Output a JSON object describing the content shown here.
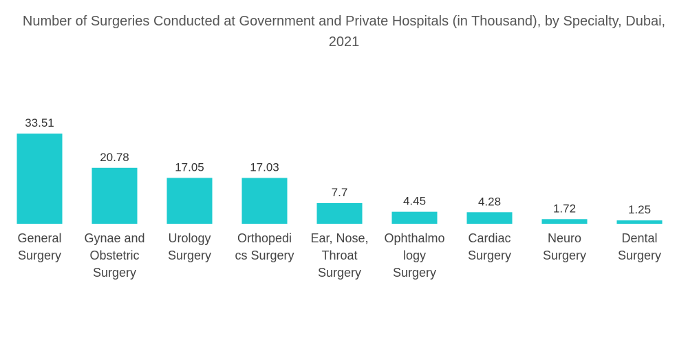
{
  "chart_data": {
    "type": "bar",
    "title": "Number of Surgeries Conducted at Government and Private Hospitals (in Thousand), by Specialty, Dubai, 2021",
    "categories": [
      "General\nSurgery",
      "Gynae and\nObstetric\nSurgery",
      "Urology\nSurgery",
      "Orthopedi\ncs Surgery",
      "Ear, Nose,\nThroat\nSurgery",
      "Ophthalmo\nlogy\nSurgery",
      "Cardiac\nSurgery",
      "Neuro\nSurgery",
      "Dental\nSurgery"
    ],
    "values": [
      33.51,
      20.78,
      17.05,
      17.03,
      7.7,
      4.45,
      4.28,
      1.72,
      1.25
    ],
    "color": "#1ecbcf"
  }
}
